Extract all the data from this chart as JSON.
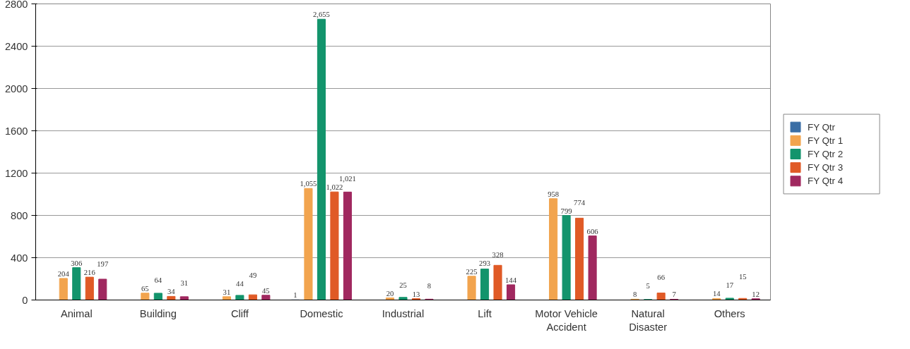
{
  "chart_data": {
    "type": "bar",
    "categories": [
      "Animal",
      "Building",
      "Cliff",
      "Domestic",
      "Industrial",
      "Lift",
      "Motor Vehicle Accident",
      "Natural Disaster",
      "Others"
    ],
    "series": [
      {
        "name": "FY Qtr",
        "color": "#3a6ea5",
        "values": [
          null,
          null,
          null,
          1,
          null,
          null,
          null,
          null,
          null
        ],
        "value_labels": [
          null,
          null,
          null,
          "1",
          null,
          null,
          null,
          null,
          null
        ]
      },
      {
        "name": "FY Qtr 1",
        "color": "#f2a44e",
        "values": [
          204,
          65,
          31,
          1055,
          20,
          225,
          958,
          8,
          14
        ],
        "value_labels": [
          "204",
          "65",
          "31",
          "1,055",
          "20",
          "225",
          "958",
          "8",
          "14"
        ]
      },
      {
        "name": "FY Qtr 2",
        "color": "#13946c",
        "values": [
          306,
          64,
          44,
          2655,
          25,
          293,
          799,
          5,
          17
        ],
        "value_labels": [
          "306",
          "64",
          "44",
          "2,655",
          "25",
          "293",
          "799",
          "5",
          "17"
        ]
      },
      {
        "name": "FY Qtr 3",
        "color": "#e05a26",
        "values": [
          216,
          34,
          49,
          1022,
          13,
          328,
          774,
          66,
          15
        ],
        "value_labels": [
          "216",
          "34",
          "49",
          "1,022",
          "13",
          "328",
          "774",
          "66",
          "15"
        ]
      },
      {
        "name": "FY Qtr 4",
        "color": "#a0285f",
        "values": [
          197,
          31,
          45,
          1021,
          8,
          144,
          606,
          7,
          12
        ],
        "value_labels": [
          "197",
          "31",
          "45",
          "1,021",
          "8",
          "144",
          "606",
          "7",
          "12"
        ]
      }
    ],
    "ylim": [
      0,
      2800
    ],
    "yticks": [
      0,
      400,
      800,
      1200,
      1600,
      2000,
      2400,
      2800
    ],
    "grid": "y",
    "legend": "right"
  }
}
